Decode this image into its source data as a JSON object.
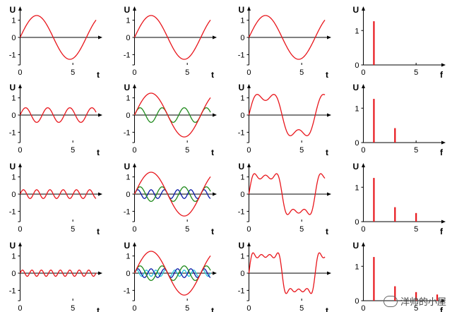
{
  "chart_data": {
    "type": "line",
    "grid": false,
    "rows": [
      {
        "harmonics": [
          1
        ]
      },
      {
        "harmonics": [
          1,
          3
        ]
      },
      {
        "harmonics": [
          1,
          3,
          5
        ]
      },
      {
        "harmonics": [
          1,
          3,
          5,
          7
        ]
      }
    ],
    "columns": [
      "last-harmonic",
      "components",
      "partial-sum",
      "spectrum"
    ],
    "series_colors": {
      "1": "#e8151b",
      "3": "#1f8a1c",
      "5": "#0a1aa8",
      "7": "#22c6de"
    },
    "sum_color": "#e8151b",
    "spectrum_color": "#e8151b",
    "amplitude_scale": 1.273,
    "time_axis": {
      "label": "t",
      "ticks": [
        "0",
        "5"
      ],
      "range": [
        0,
        7.2
      ],
      "xlim": [
        -0.3,
        7.6
      ]
    },
    "amplitude_axis": {
      "label": "U",
      "ticks": [
        "1",
        "0",
        "-1"
      ],
      "range": [
        -1.6,
        1.6
      ]
    },
    "frequency_axis": {
      "label": "f",
      "ticks": [
        "0",
        "5"
      ],
      "xlim": [
        -0.3,
        7.6
      ]
    },
    "magnitude_axis": {
      "label": "U",
      "ticks": [
        "1",
        "0"
      ],
      "range": [
        0,
        1.6
      ]
    },
    "spectrum_lines": [
      {
        "f": 1,
        "u": 1.27
      },
      {
        "f": 3,
        "u": 0.42
      },
      {
        "f": 5,
        "u": 0.25
      },
      {
        "f": 7,
        "u": 0.18
      }
    ]
  },
  "watermark": {
    "text": "洋帅的小屋"
  }
}
